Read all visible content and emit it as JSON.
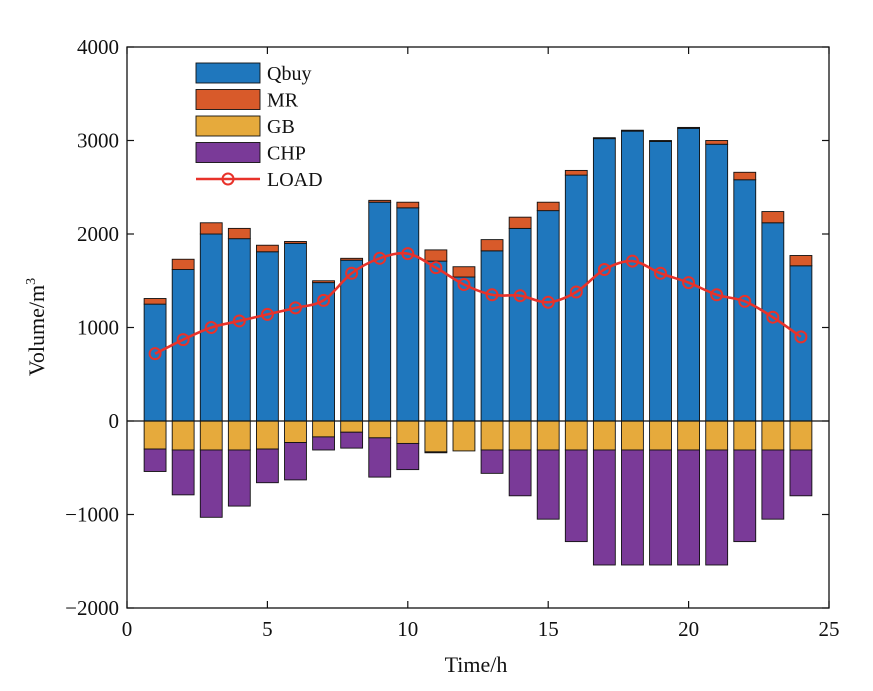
{
  "chart_data": {
    "type": "bar",
    "stacked": true,
    "xlabel": "Time/h",
    "ylabel_base": "Volume/m",
    "ylabel_sup": "3",
    "xlim": [
      0,
      25
    ],
    "ylim": [
      -2000,
      4000
    ],
    "xticks": [
      0,
      5,
      10,
      15,
      20,
      25
    ],
    "xtick_labels": [
      "0",
      "5",
      "10",
      "15",
      "20",
      "25"
    ],
    "yticks": [
      -2000,
      -1000,
      0,
      1000,
      2000,
      3000,
      4000
    ],
    "ytick_labels": [
      "−2000",
      "−1000",
      "0",
      "1000",
      "2000",
      "3000",
      "4000"
    ],
    "legend_position": "top-left",
    "x": [
      1,
      2,
      3,
      4,
      5,
      6,
      7,
      8,
      9,
      10,
      11,
      12,
      13,
      14,
      15,
      16,
      17,
      18,
      19,
      20,
      21,
      22,
      23,
      24
    ],
    "series": [
      {
        "name": "Qbuy",
        "color": "#1f77bd",
        "stack": "positive",
        "values": [
          1250,
          1620,
          2000,
          1950,
          1810,
          1900,
          1480,
          1720,
          2340,
          2280,
          1710,
          1540,
          1820,
          2060,
          2250,
          2630,
          3020,
          3100,
          2990,
          3130,
          2960,
          2580,
          2120,
          1660
        ]
      },
      {
        "name": "MR",
        "color": "#d85a2a",
        "stack": "positive",
        "values": [
          60,
          110,
          120,
          110,
          70,
          20,
          20,
          20,
          20,
          60,
          120,
          110,
          120,
          120,
          90,
          50,
          10,
          10,
          10,
          10,
          40,
          80,
          120,
          110
        ]
      },
      {
        "name": "GB",
        "color": "#e6aa3c",
        "stack": "negative",
        "values": [
          -300,
          -310,
          -310,
          -310,
          -300,
          -230,
          -170,
          -120,
          -180,
          -240,
          -330,
          -320,
          -310,
          -310,
          -310,
          -310,
          -310,
          -310,
          -310,
          -310,
          -310,
          -310,
          -310,
          -310
        ]
      },
      {
        "name": "CHP",
        "color": "#7a3a98",
        "stack": "negative",
        "values": [
          -240,
          -480,
          -720,
          -600,
          -360,
          -400,
          -140,
          -170,
          -420,
          -280,
          -10,
          0,
          -250,
          -490,
          -740,
          -980,
          -1230,
          -1230,
          -1230,
          -1230,
          -1230,
          -980,
          -740,
          -490
        ]
      },
      {
        "name": "LOAD",
        "type": "line",
        "color": "#e8322a",
        "values": [
          720,
          870,
          1000,
          1070,
          1140,
          1210,
          1290,
          1580,
          1740,
          1790,
          1640,
          1460,
          1350,
          1340,
          1270,
          1380,
          1620,
          1710,
          1580,
          1480,
          1350,
          1280,
          1110,
          900
        ]
      }
    ]
  }
}
